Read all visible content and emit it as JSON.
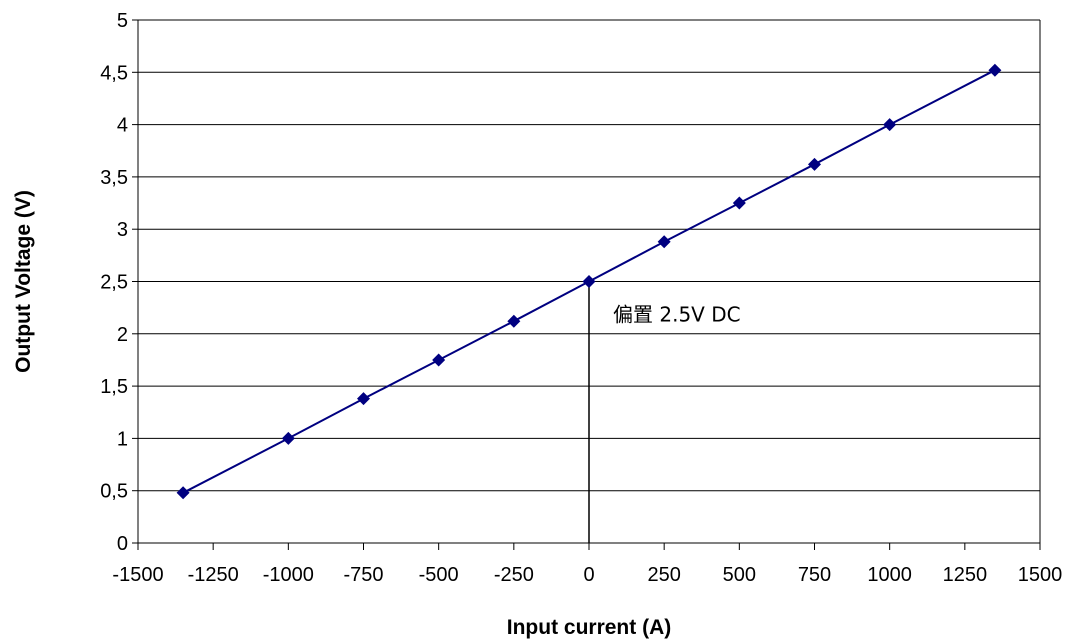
{
  "chart_data": {
    "type": "line",
    "title": "",
    "xlabel": "Input current (A)",
    "ylabel": "Output Voltage (V)",
    "xlim": [
      -1500,
      1500
    ],
    "ylim": [
      0,
      5
    ],
    "grid": "horizontal",
    "x_ticks": [
      -1500,
      -1250,
      -1000,
      -750,
      -500,
      -250,
      0,
      250,
      500,
      750,
      1000,
      1250,
      1500
    ],
    "x_tick_labels": [
      "-1500",
      "-1250",
      "-1000",
      "-750",
      "-500",
      "-250",
      "0",
      "250",
      "500",
      "750",
      "1000",
      "1250",
      "1500"
    ],
    "y_ticks": [
      0,
      0.5,
      1,
      1.5,
      2,
      2.5,
      3,
      3.5,
      4,
      4.5,
      5
    ],
    "y_tick_labels": [
      "0",
      "0,5",
      "1",
      "1,5",
      "2",
      "2,5",
      "3",
      "3,5",
      "4",
      "4,5",
      "5"
    ],
    "series": [
      {
        "color": "#000080",
        "marker": "diamond",
        "x": [
          -1350,
          -1000,
          -750,
          -500,
          -250,
          0,
          250,
          500,
          750,
          1000,
          1350
        ],
        "y": [
          0.48,
          1.0,
          1.38,
          1.75,
          2.12,
          2.5,
          2.88,
          3.25,
          3.62,
          4.0,
          4.52
        ]
      }
    ],
    "annotations": [
      {
        "text": "偏置 2.5V DC",
        "x": 0,
        "y": 2.5,
        "line_to": 0
      }
    ]
  }
}
